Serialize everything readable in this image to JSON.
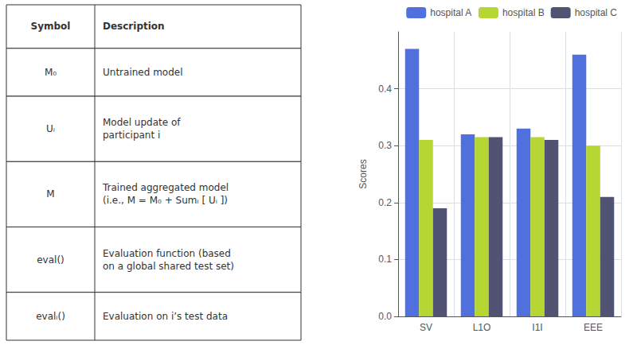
{
  "chart_data": {
    "type": "bar",
    "categories": [
      "SV",
      "L1O",
      "I1I",
      "EEE"
    ],
    "series": [
      {
        "name": "hospital A",
        "values": [
          0.47,
          0.32,
          0.33,
          0.46
        ]
      },
      {
        "name": "hospital B",
        "values": [
          0.31,
          0.315,
          0.315,
          0.3
        ]
      },
      {
        "name": "hospital C",
        "values": [
          0.19,
          0.315,
          0.31,
          0.21
        ]
      }
    ],
    "ylabel": "Scores",
    "ylim": [
      0.0,
      0.5
    ],
    "yticks": [
      {
        "value": 0.0,
        "label": "0.0"
      },
      0.1,
      0.2,
      0.3,
      0.4
    ],
    "grid": true,
    "legend": "upper right",
    "table": {
      "header": [
        "Symbol",
        "Description"
      ],
      "rows": [
        [
          "M₀",
          [
            "Untrained model"
          ]
        ],
        [
          "Uᵢ",
          [
            "Model update of",
            "participant i"
          ]
        ],
        [
          "M",
          [
            "Trained aggregated model",
            "(i.e., M = M₀ + Sumᵢ [ Uᵢ ])"
          ]
        ],
        [
          "eval()",
          [
            "Evaluation function (based",
            "on a global shared test set)"
          ]
        ],
        [
          "evalᵢ()",
          [
            "Evaluation on i’s test data"
          ]
        ]
      ]
    }
  }
}
